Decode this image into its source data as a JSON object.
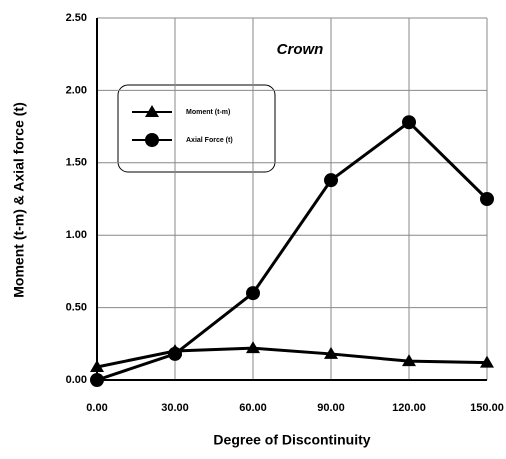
{
  "chart_data": {
    "type": "line",
    "xlabel": "Degree of Discontinuity",
    "ylabel": "Moment (t-m) & Axial force (t)",
    "annotation": "Crown",
    "x": [
      0,
      30,
      60,
      90,
      120,
      150
    ],
    "series": [
      {
        "name": "Moment (t-m)",
        "color": "#000000",
        "marker": "triangle",
        "values": [
          0.09,
          0.2,
          0.22,
          0.18,
          0.13,
          0.12
        ]
      },
      {
        "name": "Axial Force (t)",
        "color": "#000000",
        "marker": "circle",
        "values": [
          0,
          0.18,
          0.6,
          1.38,
          1.78,
          1.25
        ]
      }
    ],
    "xlim": [
      0,
      150
    ],
    "xticks": [
      {
        "value": 0,
        "label": "0.00"
      },
      {
        "value": 30,
        "label": "30.00"
      },
      {
        "value": 60,
        "label": "60.00"
      },
      {
        "value": 90,
        "label": "90.00"
      },
      {
        "value": 120,
        "label": "120.00"
      },
      {
        "value": 150,
        "label": "150.00"
      }
    ],
    "ylim": [
      0,
      2.5
    ],
    "yticks": [
      {
        "value": 0,
        "label": "0.00"
      },
      {
        "value": 0.5,
        "label": "0.50"
      },
      {
        "value": 1,
        "label": "1.00"
      },
      {
        "value": 1.5,
        "label": "1.50"
      },
      {
        "value": 2,
        "label": "2.00"
      },
      {
        "value": 2.5,
        "label": "2.50"
      }
    ],
    "grid": true
  }
}
